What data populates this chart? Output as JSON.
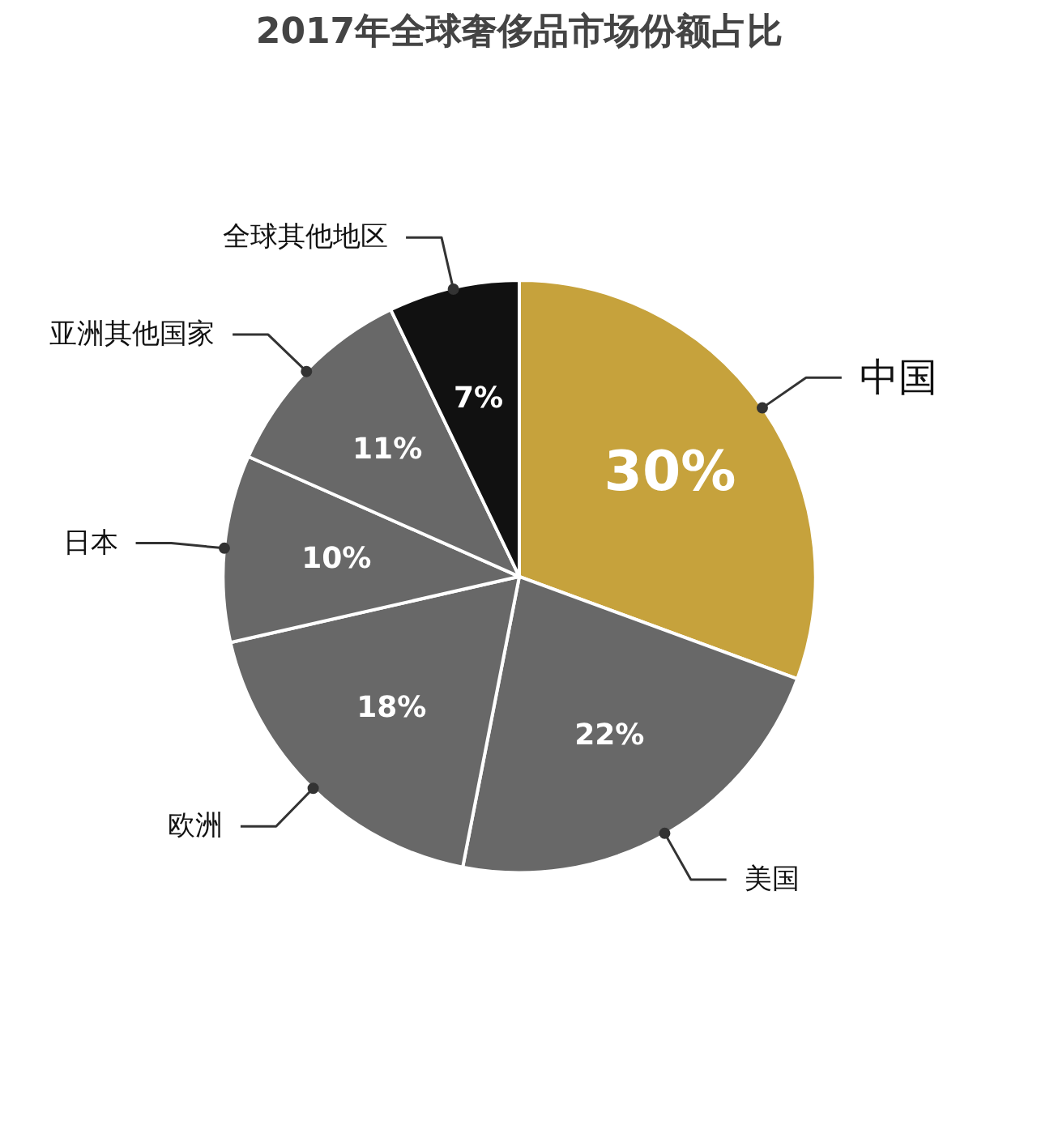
{
  "chart_data": {
    "type": "pie",
    "title": "2017年全球奢侈品市场份额占比",
    "categories": [
      "中国",
      "美国",
      "欧洲",
      "日本",
      "亚洲其他国家",
      "全球其他地区"
    ],
    "values": [
      30,
      22,
      18,
      10,
      11,
      7
    ],
    "colors": [
      "#c6a23c",
      "#686868",
      "#686868",
      "#686868",
      "#686868",
      "#111111"
    ],
    "value_labels": [
      "30%",
      "22%",
      "18%",
      "10%",
      "11%",
      "7%"
    ],
    "legend": false
  }
}
